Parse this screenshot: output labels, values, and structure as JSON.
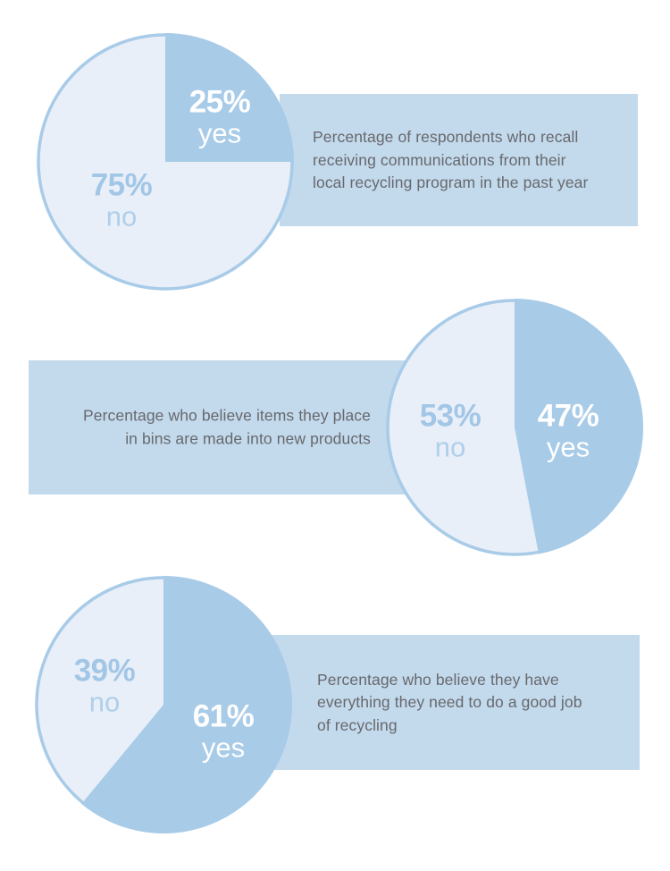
{
  "page": {
    "background": "#ffffff",
    "kind": "recycling-survey-infographic"
  },
  "palette": {
    "slice_yes": "#a8cbe8",
    "slice_no": "#e9eff8",
    "pie_border": "#a8cbe8",
    "band": "#c3d9ec",
    "label_white": "#ffffff",
    "label_no_pct": "#a2c6e6",
    "label_no_word": "#afcfeb",
    "caption_text": "#67696d"
  },
  "chart_data": [
    {
      "type": "pie",
      "title": "Percentage of respondents who recall receiving communications from their local recycling program in the past year",
      "slices": [
        {
          "label": "yes",
          "value": 25,
          "color": "#a8cbe8"
        },
        {
          "label": "no",
          "value": 75,
          "color": "#e9eff8"
        }
      ],
      "start_angle_deg": 0,
      "direction": "clockwise",
      "labels_inside": true,
      "legend": "none"
    },
    {
      "type": "pie",
      "title": "Percentage who believe items they place in bins are made into new products",
      "slices": [
        {
          "label": "yes",
          "value": 47,
          "color": "#a8cbe8"
        },
        {
          "label": "no",
          "value": 53,
          "color": "#e9eff8"
        }
      ],
      "start_angle_deg": 0,
      "direction": "clockwise",
      "labels_inside": true,
      "legend": "none"
    },
    {
      "type": "pie",
      "title": "Percentage who believe they have everything they need to do a good job of recycling",
      "slices": [
        {
          "label": "yes",
          "value": 61,
          "color": "#a8cbe8"
        },
        {
          "label": "no",
          "value": 39,
          "color": "#e9eff8"
        }
      ],
      "start_angle_deg": 0,
      "direction": "clockwise",
      "labels_inside": true,
      "legend": "none"
    }
  ],
  "charts": [
    {
      "caption_lines": [
        "Percentage of respondents who recall",
        "receiving communications from their",
        "local recycling program in the past year"
      ],
      "yes_pct": "25%",
      "yes_word": "yes",
      "no_pct": "75%",
      "no_word": "no"
    },
    {
      "caption_lines": [
        "Percentage who believe items they place",
        "in bins are made into new products"
      ],
      "yes_pct": "47%",
      "yes_word": "yes",
      "no_pct": "53%",
      "no_word": "no"
    },
    {
      "caption_lines": [
        "Percentage who believe they have",
        "everything they need to do a good job",
        "of recycling"
      ],
      "yes_pct": "61%",
      "yes_word": "yes",
      "no_pct": "39%",
      "no_word": "no"
    }
  ]
}
